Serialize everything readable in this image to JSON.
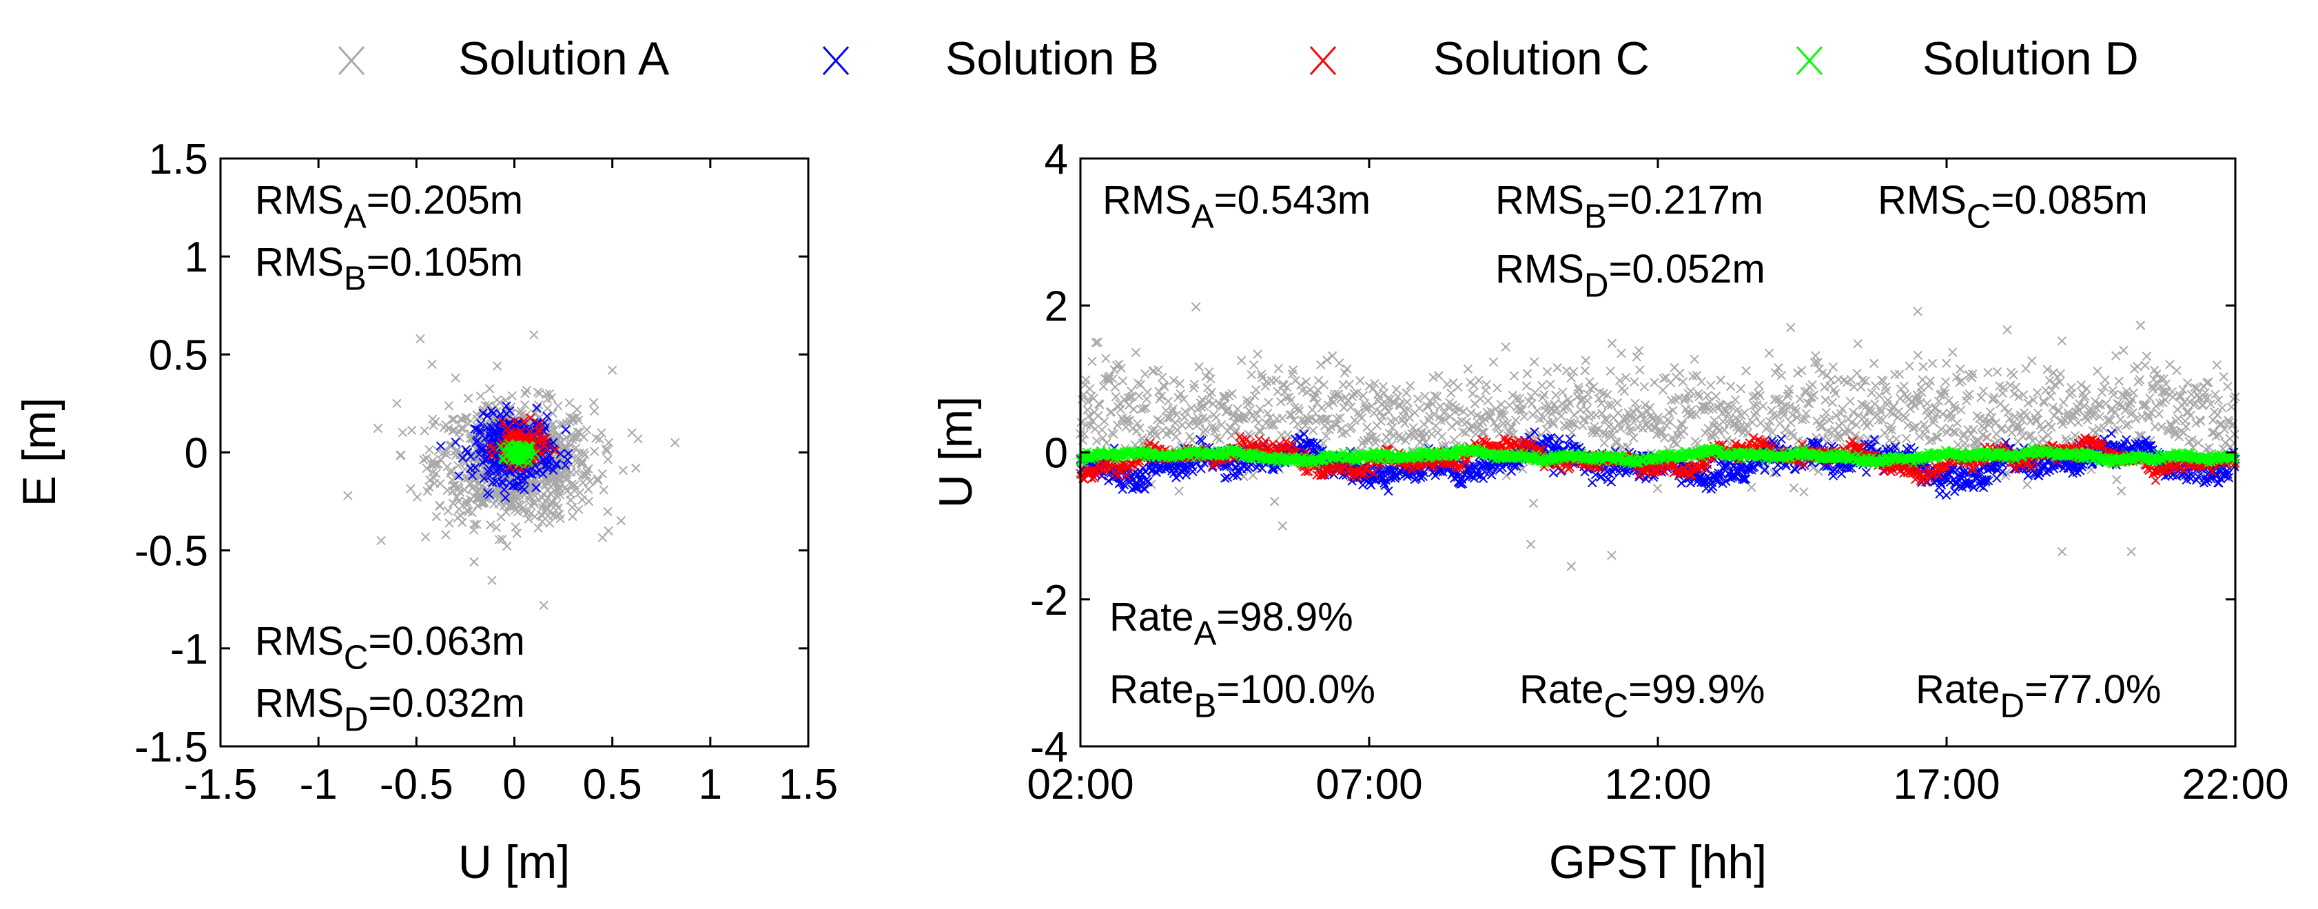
{
  "legend": {
    "placement": "top",
    "items": [
      {
        "label": "Solution A",
        "color": "#a9a9a9",
        "marker": "x-marker-icon"
      },
      {
        "label": "Solution B",
        "color": "#0000ff",
        "marker": "x-marker-icon"
      },
      {
        "label": "Solution C",
        "color": "#ff0000",
        "marker": "x-marker-icon"
      },
      {
        "label": "Solution D",
        "color": "#00ff00",
        "marker": "x-marker-icon"
      }
    ]
  },
  "chart_data": [
    {
      "type": "scatter",
      "xlabel": "U [m]",
      "ylabel": "E [m]",
      "xlim": [
        -1.5,
        1.5
      ],
      "ylim": [
        -1.5,
        1.5
      ],
      "xticks": [
        -1.5,
        -1,
        -0.5,
        0,
        0.5,
        1,
        1.5
      ],
      "xtick_labels": [
        "-1.5",
        "-1",
        "-0.5",
        "0",
        "0.5",
        "1",
        "1.5"
      ],
      "yticks": [
        1.5,
        1,
        0.5,
        0,
        -0.5,
        -1,
        -1.5
      ],
      "ytick_labels": [
        "1.5",
        "1",
        "0.5",
        "0",
        "-0.5",
        "-1",
        "-1.5"
      ],
      "grid": false,
      "annotations": [
        {
          "base": "RMS",
          "sub": "A",
          "rest": "=0.205m",
          "anchor": "top-left"
        },
        {
          "base": "RMS",
          "sub": "B",
          "rest": "=0.105m",
          "anchor": "top-left"
        },
        {
          "base": "RMS",
          "sub": "C",
          "rest": "=0.063m",
          "anchor": "bottom-left"
        },
        {
          "base": "RMS",
          "sub": "D",
          "rest": "=0.032m",
          "anchor": "bottom-left"
        }
      ],
      "series": [
        {
          "name": "Solution A",
          "color": "#a9a9a9",
          "center": [
            0.0,
            -0.05
          ],
          "spread": [
            0.2,
            0.15
          ],
          "points": [
            [
              -0.85,
              -0.22
            ],
            [
              -0.68,
              -0.45
            ],
            [
              -0.48,
              0.58
            ],
            [
              -0.42,
              0.45
            ],
            [
              -0.3,
              0.38
            ],
            [
              0.1,
              0.6
            ],
            [
              0.5,
              0.42
            ],
            [
              0.6,
              0.1
            ],
            [
              0.62,
              -0.08
            ],
            [
              0.82,
              0.05
            ],
            [
              0.48,
              -0.4
            ],
            [
              -0.35,
              -0.42
            ],
            [
              0.15,
              -0.78
            ],
            [
              0.38,
              -0.25
            ],
            [
              -0.6,
              0.25
            ]
          ]
        },
        {
          "name": "Solution B",
          "color": "#0000ff",
          "center": [
            0.0,
            0.02
          ],
          "spread": [
            0.1,
            0.08
          ],
          "points": []
        },
        {
          "name": "Solution C",
          "color": "#ff0000",
          "center": [
            0.03,
            0.03
          ],
          "spread": [
            0.06,
            0.05
          ],
          "points": []
        },
        {
          "name": "Solution D",
          "color": "#00ff00",
          "center": [
            0.02,
            0.0
          ],
          "spread": [
            0.03,
            0.025
          ],
          "points": []
        }
      ]
    },
    {
      "type": "scatter",
      "xlabel": "GPST [hh]",
      "ylabel": "U [m]",
      "xlim": [
        2,
        22
      ],
      "ylim": [
        -4,
        4
      ],
      "xticks": [
        2,
        7,
        12,
        17,
        22
      ],
      "xtick_labels": [
        "02:00",
        "07:00",
        "12:00",
        "17:00",
        "22:00"
      ],
      "yticks": [
        4,
        2,
        0,
        -2,
        -4
      ],
      "ytick_labels": [
        "4",
        "2",
        "0",
        "-2",
        "-4"
      ],
      "grid": false,
      "annotations": [
        {
          "base": "RMS",
          "sub": "A",
          "rest": "=0.543m",
          "anchor": "top"
        },
        {
          "base": "RMS",
          "sub": "B",
          "rest": "=0.217m",
          "anchor": "top"
        },
        {
          "base": "RMS",
          "sub": "C",
          "rest": "=0.085m",
          "anchor": "top"
        },
        {
          "base": "RMS",
          "sub": "D",
          "rest": "=0.052m",
          "anchor": "top"
        },
        {
          "base": "Rate",
          "sub": "A",
          "rest": "=98.9%",
          "anchor": "bottom"
        },
        {
          "base": "Rate",
          "sub": "B",
          "rest": "=100.0%",
          "anchor": "bottom"
        },
        {
          "base": "Rate",
          "sub": "C",
          "rest": "=99.9%",
          "anchor": "bottom"
        },
        {
          "base": "Rate",
          "sub": "D",
          "rest": "=77.0%",
          "anchor": "bottom"
        }
      ],
      "series": [
        {
          "name": "Solution A",
          "color": "#a9a9a9",
          "baseline": 0.5,
          "noise": 0.35,
          "points": [
            [
              4.0,
              1.98
            ],
            [
              10.5,
              -1.55
            ],
            [
              11.2,
              -1.4
            ],
            [
              16.5,
              1.92
            ],
            [
              2.3,
              1.5
            ],
            [
              9.8,
              -1.25
            ],
            [
              19.0,
              -1.35
            ],
            [
              20.2,
              -1.35
            ],
            [
              14.3,
              1.7
            ],
            [
              5.5,
              -1.0
            ]
          ]
        },
        {
          "name": "Solution B",
          "color": "#0000ff",
          "baseline": -0.15,
          "noise": 0.18,
          "points": []
        },
        {
          "name": "Solution C",
          "color": "#ff0000",
          "baseline": -0.08,
          "noise": 0.1,
          "points": []
        },
        {
          "name": "Solution D",
          "color": "#00ff00",
          "baseline": -0.05,
          "noise": 0.05,
          "points": []
        }
      ]
    }
  ]
}
